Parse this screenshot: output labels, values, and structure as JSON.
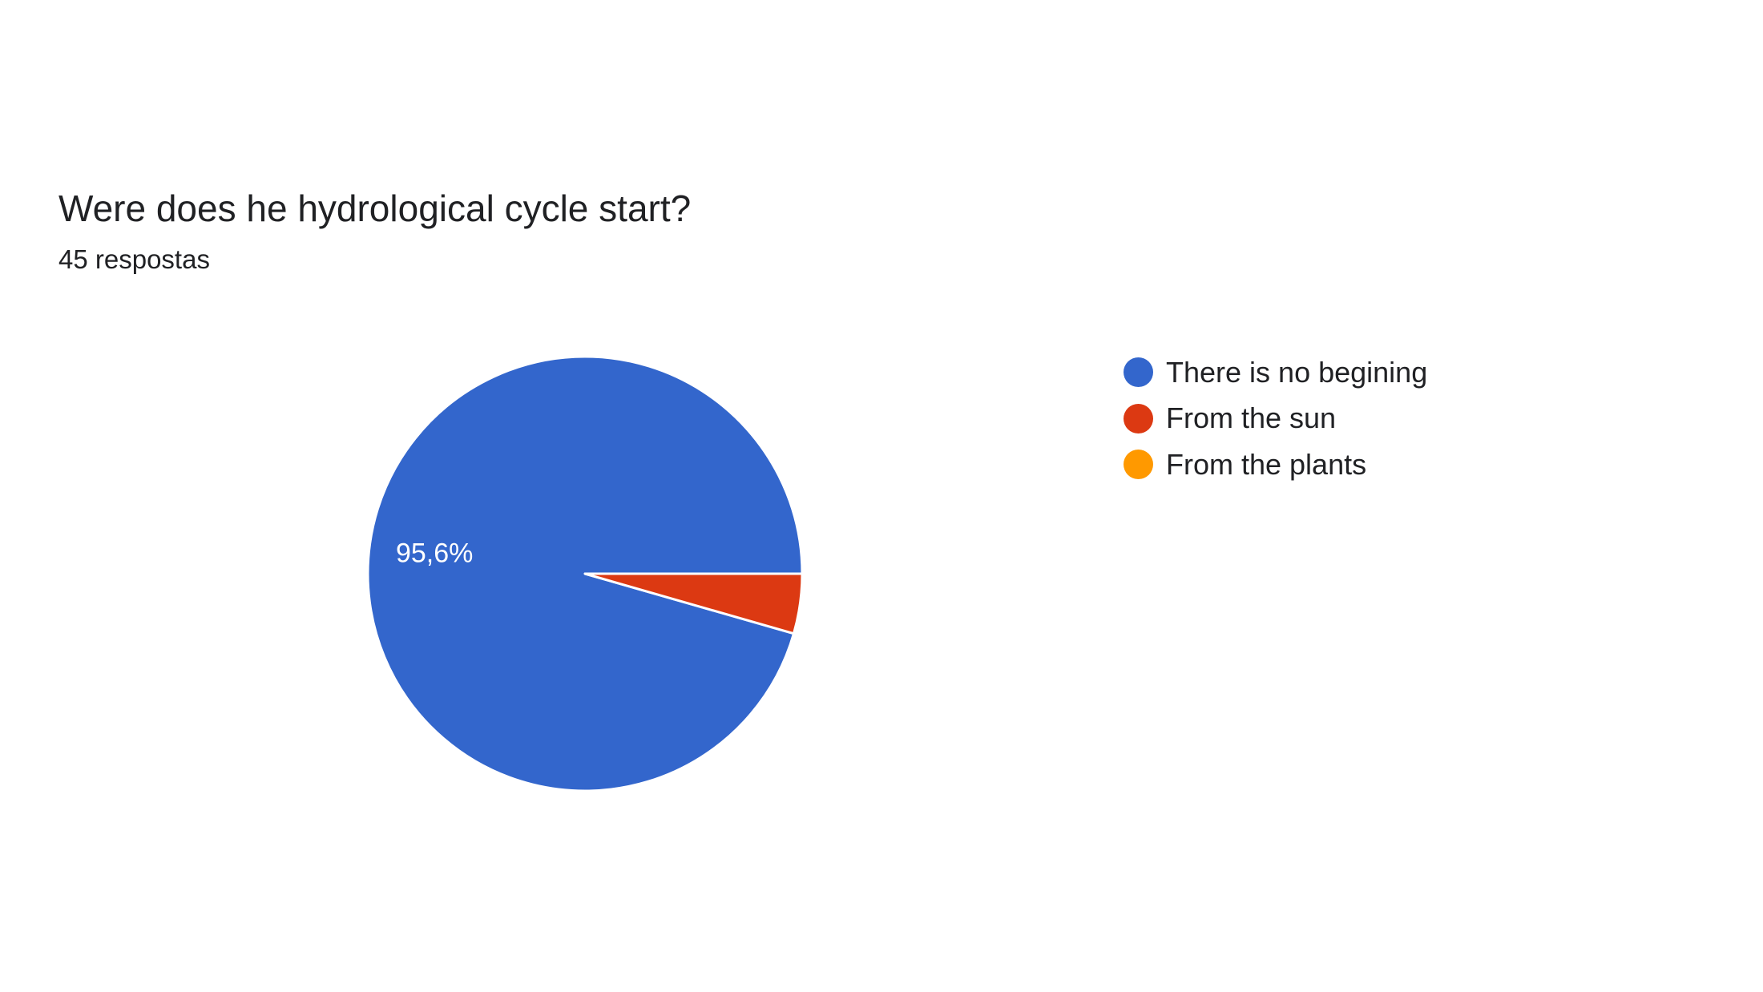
{
  "header": {
    "title": "Were does he hydrological cycle start?",
    "subtitle": "45 respostas"
  },
  "chart_data": {
    "type": "pie",
    "title": "Were does he hydrological cycle start?",
    "subtitle": "45 respostas",
    "categories": [
      "There is no begining",
      "From the sun",
      "From the plants"
    ],
    "values": [
      43,
      2,
      0
    ],
    "percentages": [
      95.6,
      4.4,
      0
    ],
    "data_labels": [
      "95,6%",
      "",
      ""
    ],
    "colors": [
      "#3366CC",
      "#DC3912",
      "#FF9900"
    ],
    "legend_position": "right",
    "start_direction": "east, counter-clockwise"
  },
  "legend": {
    "items": [
      {
        "label": "There is no begining",
        "color": "#3366CC"
      },
      {
        "label": "From the sun",
        "color": "#DC3912"
      },
      {
        "label": "From the plants",
        "color": "#FF9900"
      }
    ]
  }
}
